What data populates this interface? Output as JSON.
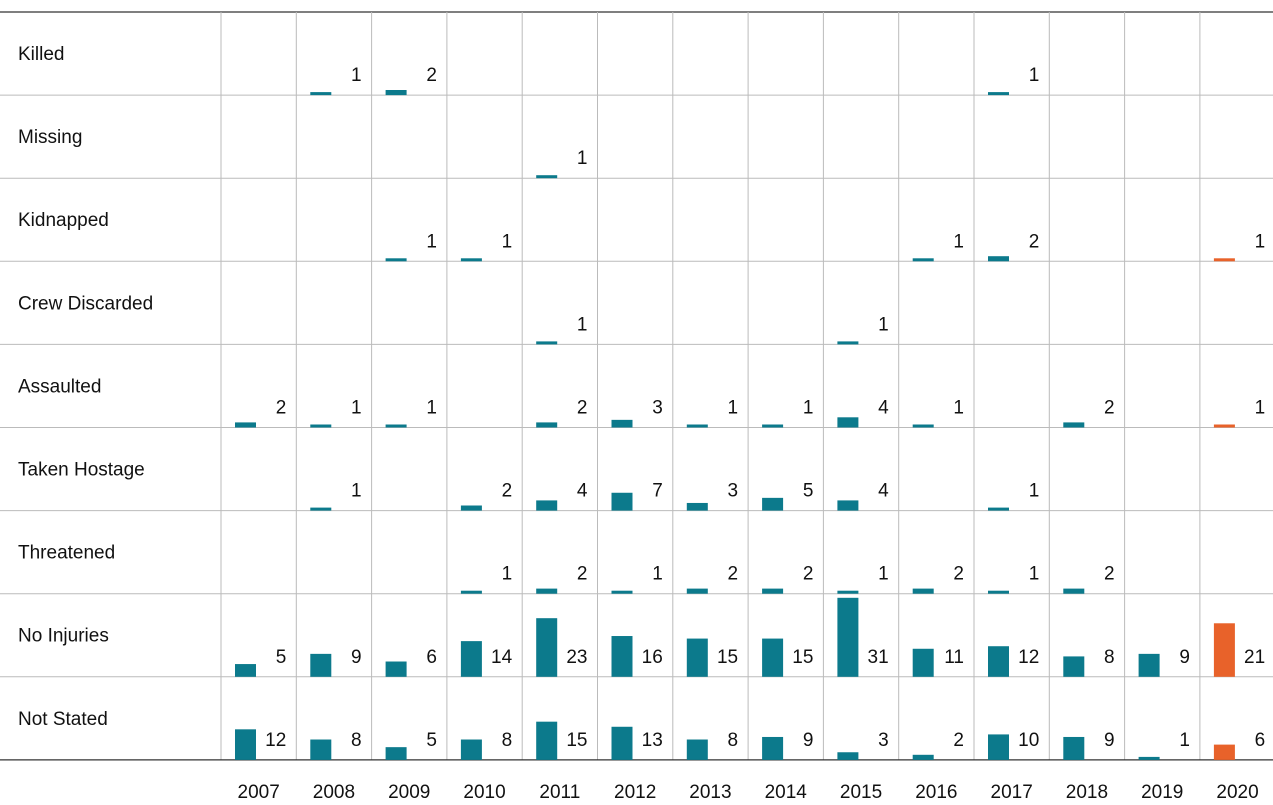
{
  "colors": {
    "bar": "#0c7a8c",
    "highlight": "#e8622a",
    "grid": "#bbbbbb",
    "rule": "#333333"
  },
  "chart_data": {
    "type": "bar",
    "title": "",
    "categories": [
      "2007",
      "2008",
      "2009",
      "2010",
      "2011",
      "2012",
      "2013",
      "2014",
      "2015",
      "2016",
      "2017",
      "2018",
      "2019",
      "2020"
    ],
    "highlight_category": "2020",
    "series": [
      {
        "name": "Killed",
        "values": [
          null,
          1,
          2,
          null,
          null,
          null,
          null,
          null,
          null,
          null,
          1,
          null,
          null,
          null
        ]
      },
      {
        "name": "Missing",
        "values": [
          null,
          null,
          null,
          null,
          1,
          null,
          null,
          null,
          null,
          null,
          null,
          null,
          null,
          null
        ]
      },
      {
        "name": "Kidnapped",
        "values": [
          null,
          null,
          1,
          1,
          null,
          null,
          null,
          null,
          null,
          1,
          2,
          null,
          null,
          1
        ]
      },
      {
        "name": "Crew Discarded",
        "values": [
          null,
          null,
          null,
          null,
          1,
          null,
          null,
          null,
          1,
          null,
          null,
          null,
          null,
          null
        ]
      },
      {
        "name": "Assaulted",
        "values": [
          2,
          1,
          1,
          null,
          2,
          3,
          1,
          1,
          4,
          1,
          null,
          2,
          null,
          1
        ]
      },
      {
        "name": "Taken Hostage",
        "values": [
          null,
          1,
          null,
          2,
          4,
          7,
          3,
          5,
          4,
          null,
          1,
          null,
          null,
          null
        ]
      },
      {
        "name": "Threatened",
        "values": [
          null,
          null,
          null,
          1,
          2,
          1,
          2,
          2,
          1,
          2,
          1,
          2,
          null,
          null
        ]
      },
      {
        "name": "No Injuries",
        "values": [
          5,
          9,
          6,
          14,
          23,
          16,
          15,
          15,
          31,
          11,
          12,
          8,
          9,
          21
        ]
      },
      {
        "name": "Not Stated",
        "values": [
          12,
          8,
          5,
          8,
          15,
          13,
          8,
          9,
          3,
          2,
          10,
          9,
          1,
          6
        ]
      }
    ],
    "grid": true
  }
}
